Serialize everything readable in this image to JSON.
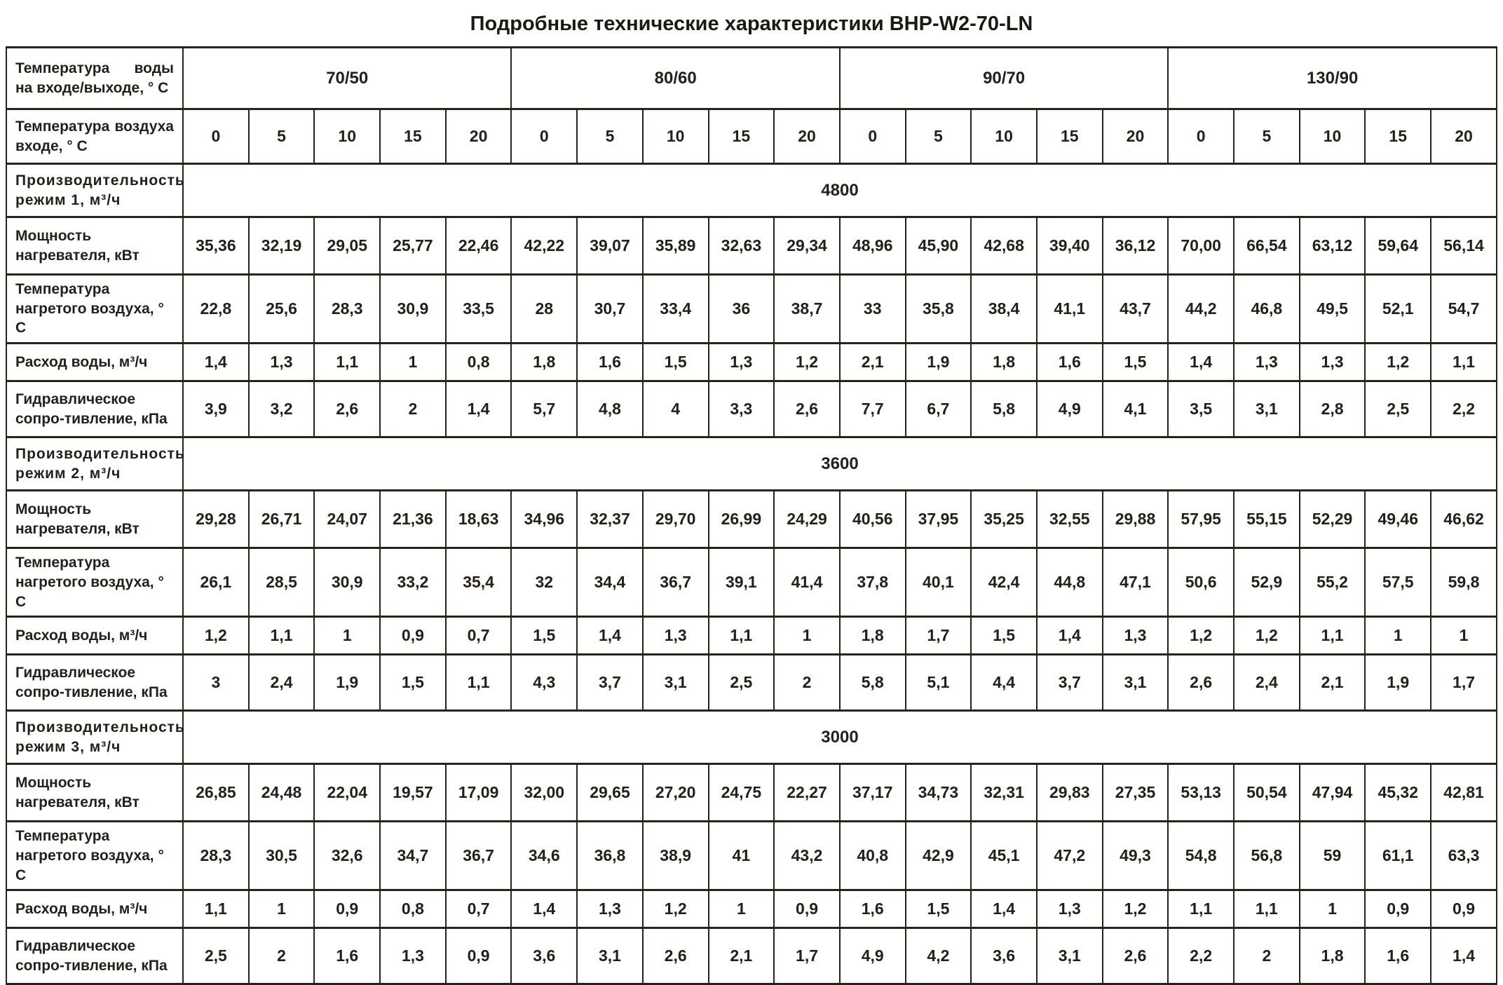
{
  "title": "Подробные технические характеристики BHP-W2-70-LN",
  "table": {
    "corner_label": "Температура воды на входе/выходе, ° С",
    "air_label": "Температура воздуха входе, ° С",
    "groups": [
      "70/50",
      "80/60",
      "90/70",
      "130/90"
    ],
    "air_temps": [
      "0",
      "5",
      "10",
      "15",
      "20"
    ],
    "modes": [
      {
        "capacity_label": "Производительность режим 1, м³/ч",
        "capacity": "4800",
        "rows": [
          {
            "label": "Мощность нагревателя, кВт",
            "values": [
              "35,36",
              "32,19",
              "29,05",
              "25,77",
              "22,46",
              "42,22",
              "39,07",
              "35,89",
              "32,63",
              "29,34",
              "48,96",
              "45,90",
              "42,68",
              "39,40",
              "36,12",
              "70,00",
              "66,54",
              "63,12",
              "59,64",
              "56,14"
            ]
          },
          {
            "label": "Температура нагретого воздуха, ° С",
            "values": [
              "22,8",
              "25,6",
              "28,3",
              "30,9",
              "33,5",
              "28",
              "30,7",
              "33,4",
              "36",
              "38,7",
              "33",
              "35,8",
              "38,4",
              "41,1",
              "43,7",
              "44,2",
              "46,8",
              "49,5",
              "52,1",
              "54,7"
            ]
          },
          {
            "label": "Расход воды, м³/ч",
            "values": [
              "1,4",
              "1,3",
              "1,1",
              "1",
              "0,8",
              "1,8",
              "1,6",
              "1,5",
              "1,3",
              "1,2",
              "2,1",
              "1,9",
              "1,8",
              "1,6",
              "1,5",
              "1,4",
              "1,3",
              "1,3",
              "1,2",
              "1,1"
            ]
          },
          {
            "label": "Гидравлическое сопро-тивление, кПа",
            "values": [
              "3,9",
              "3,2",
              "2,6",
              "2",
              "1,4",
              "5,7",
              "4,8",
              "4",
              "3,3",
              "2,6",
              "7,7",
              "6,7",
              "5,8",
              "4,9",
              "4,1",
              "3,5",
              "3,1",
              "2,8",
              "2,5",
              "2,2"
            ]
          }
        ]
      },
      {
        "capacity_label": "Производительность режим 2, м³/ч",
        "capacity": "3600",
        "rows": [
          {
            "label": "Мощность нагревателя, кВт",
            "values": [
              "29,28",
              "26,71",
              "24,07",
              "21,36",
              "18,63",
              "34,96",
              "32,37",
              "29,70",
              "26,99",
              "24,29",
              "40,56",
              "37,95",
              "35,25",
              "32,55",
              "29,88",
              "57,95",
              "55,15",
              "52,29",
              "49,46",
              "46,62"
            ]
          },
          {
            "label": "Температура нагретого воздуха, ° С",
            "values": [
              "26,1",
              "28,5",
              "30,9",
              "33,2",
              "35,4",
              "32",
              "34,4",
              "36,7",
              "39,1",
              "41,4",
              "37,8",
              "40,1",
              "42,4",
              "44,8",
              "47,1",
              "50,6",
              "52,9",
              "55,2",
              "57,5",
              "59,8"
            ]
          },
          {
            "label": "Расход воды, м³/ч",
            "values": [
              "1,2",
              "1,1",
              "1",
              "0,9",
              "0,7",
              "1,5",
              "1,4",
              "1,3",
              "1,1",
              "1",
              "1,8",
              "1,7",
              "1,5",
              "1,4",
              "1,3",
              "1,2",
              "1,2",
              "1,1",
              "1",
              "1"
            ]
          },
          {
            "label": "Гидравлическое сопро-тивление, кПа",
            "values": [
              "3",
              "2,4",
              "1,9",
              "1,5",
              "1,1",
              "4,3",
              "3,7",
              "3,1",
              "2,5",
              "2",
              "5,8",
              "5,1",
              "4,4",
              "3,7",
              "3,1",
              "2,6",
              "2,4",
              "2,1",
              "1,9",
              "1,7"
            ]
          }
        ]
      },
      {
        "capacity_label": "Производительность режим 3, м³/ч",
        "capacity": "3000",
        "rows": [
          {
            "label": "Мощность нагревателя, кВт",
            "values": [
              "26,85",
              "24,48",
              "22,04",
              "19,57",
              "17,09",
              "32,00",
              "29,65",
              "27,20",
              "24,75",
              "22,27",
              "37,17",
              "34,73",
              "32,31",
              "29,83",
              "27,35",
              "53,13",
              "50,54",
              "47,94",
              "45,32",
              "42,81"
            ]
          },
          {
            "label": "Температура нагретого воздуха, ° С",
            "values": [
              "28,3",
              "30,5",
              "32,6",
              "34,7",
              "36,7",
              "34,6",
              "36,8",
              "38,9",
              "41",
              "43,2",
              "40,8",
              "42,9",
              "45,1",
              "47,2",
              "49,3",
              "54,8",
              "56,8",
              "59",
              "61,1",
              "63,3"
            ]
          },
          {
            "label": "Расход воды, м³/ч",
            "values": [
              "1,1",
              "1",
              "0,9",
              "0,8",
              "0,7",
              "1,4",
              "1,3",
              "1,2",
              "1",
              "0,9",
              "1,6",
              "1,5",
              "1,4",
              "1,3",
              "1,2",
              "1,1",
              "1,1",
              "1",
              "0,9",
              "0,9"
            ]
          },
          {
            "label": "Гидравлическое сопро-тивление, кПа",
            "values": [
              "2,5",
              "2",
              "1,6",
              "1,3",
              "0,9",
              "3,6",
              "3,1",
              "2,6",
              "2,1",
              "1,7",
              "4,9",
              "4,2",
              "3,6",
              "3,1",
              "2,6",
              "2,2",
              "2",
              "1,8",
              "1,6",
              "1,4"
            ]
          }
        ]
      }
    ]
  }
}
